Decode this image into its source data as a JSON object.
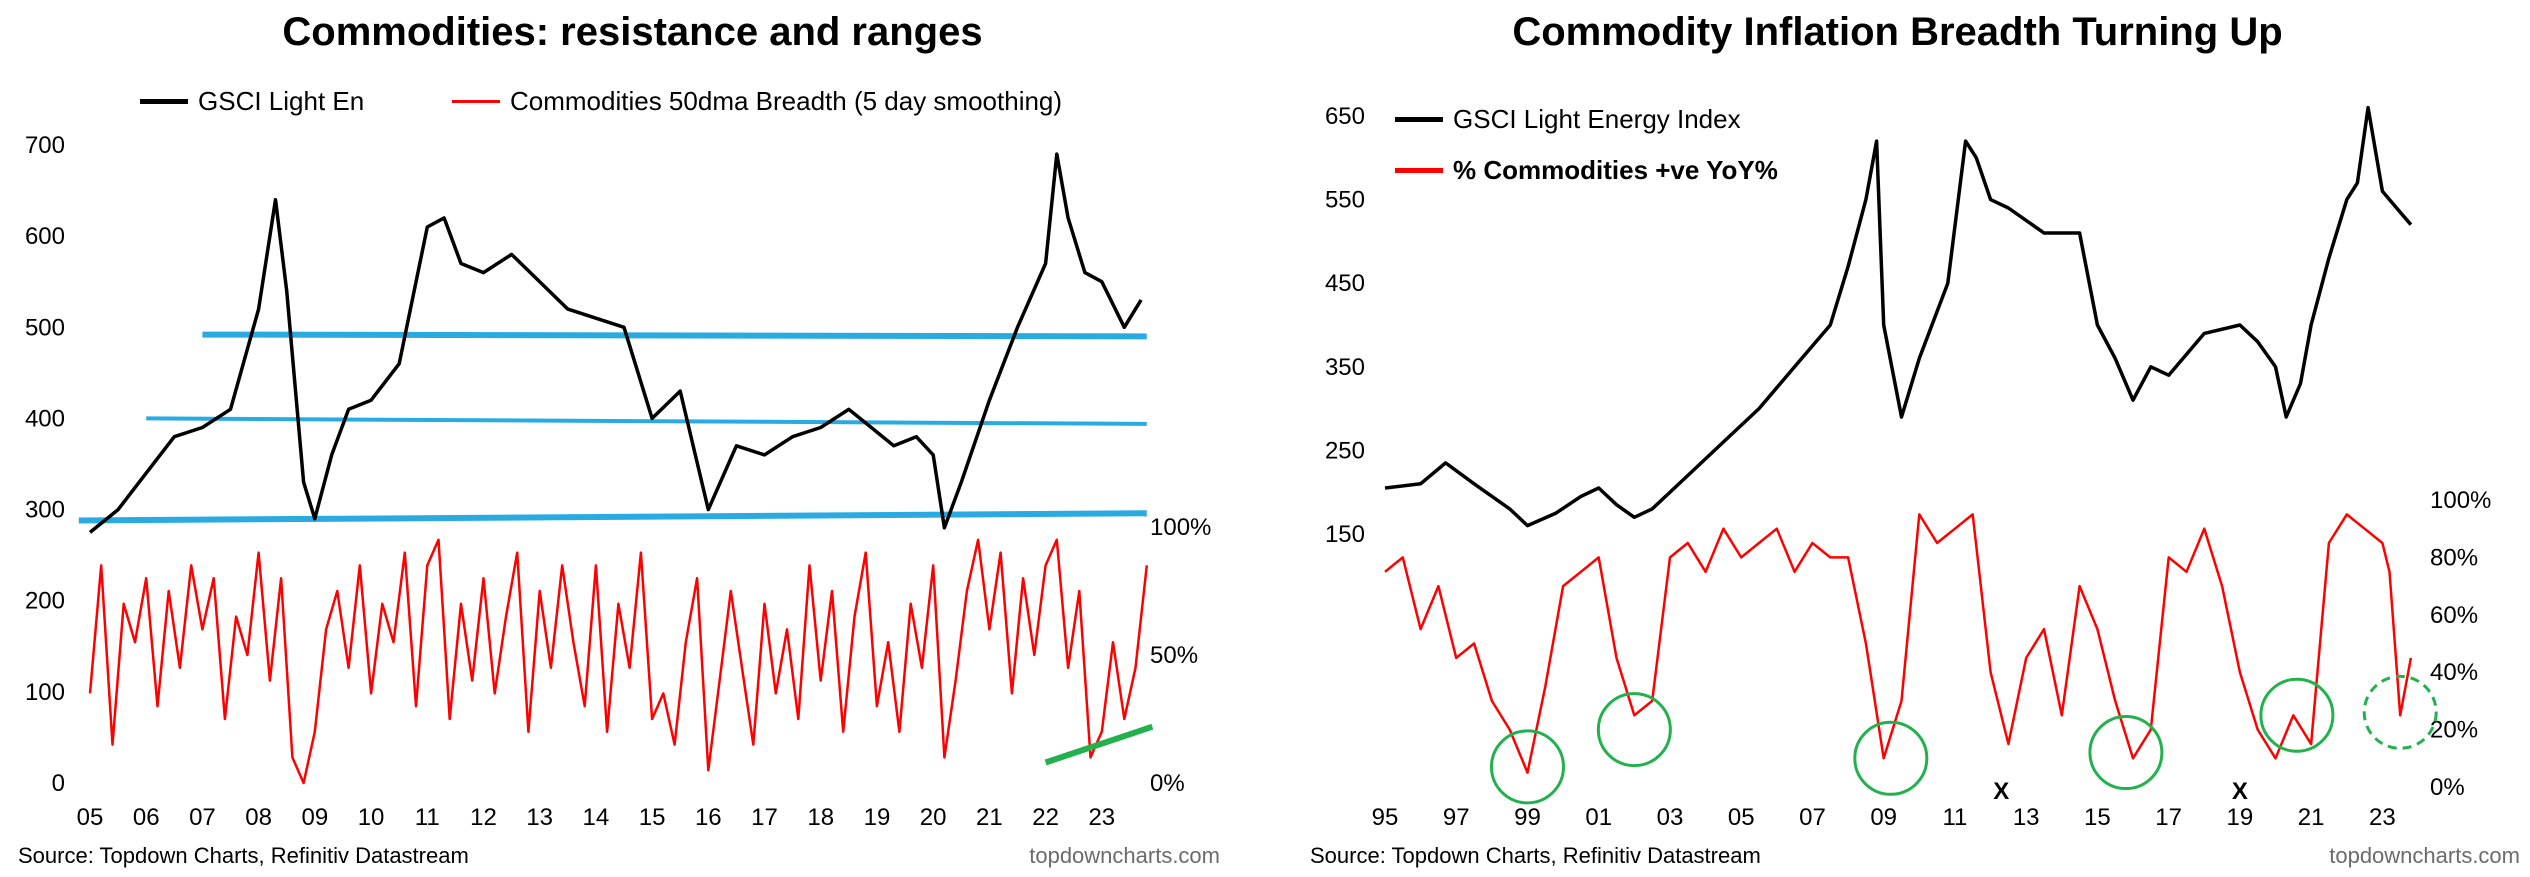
{
  "chart_data": [
    {
      "type": "line",
      "title": "Commodities: resistance and ranges",
      "legend": [
        {
          "name": "GSCI Light En",
          "color": "#000000"
        },
        {
          "name": "Commodities 50dma Breadth (5 day smoothing)",
          "color": "#ff0000"
        }
      ],
      "x_ticks": [
        "05",
        "06",
        "07",
        "08",
        "09",
        "10",
        "11",
        "12",
        "13",
        "14",
        "15",
        "16",
        "17",
        "18",
        "19",
        "20",
        "21",
        "22",
        "23"
      ],
      "x_range": [
        2005,
        2024
      ],
      "y_left_ticks": [
        "0",
        "100",
        "200",
        "300",
        "400",
        "500",
        "600",
        "700"
      ],
      "y_left_range": [
        0,
        700
      ],
      "y_right_ticks": [
        "0%",
        "50%",
        "100%"
      ],
      "y_right_range": [
        0,
        100
      ],
      "series": [
        {
          "name": "GSCI Light En",
          "axis": "left",
          "color": "#000000",
          "x": [
            2005.0,
            2005.5,
            2006.0,
            2006.5,
            2007.0,
            2007.5,
            2008.0,
            2008.3,
            2008.5,
            2008.8,
            2009.0,
            2009.3,
            2009.6,
            2010.0,
            2010.5,
            2011.0,
            2011.3,
            2011.6,
            2012.0,
            2012.5,
            2013.0,
            2013.5,
            2014.0,
            2014.5,
            2015.0,
            2015.5,
            2016.0,
            2016.5,
            2017.0,
            2017.5,
            2018.0,
            2018.5,
            2018.9,
            2019.3,
            2019.7,
            2020.0,
            2020.2,
            2020.5,
            2021.0,
            2021.5,
            2022.0,
            2022.2,
            2022.4,
            2022.7,
            2023.0,
            2023.4,
            2023.7
          ],
          "values": [
            275,
            300,
            340,
            380,
            390,
            410,
            520,
            640,
            540,
            330,
            290,
            360,
            410,
            420,
            460,
            610,
            620,
            570,
            560,
            580,
            550,
            520,
            510,
            500,
            400,
            430,
            300,
            370,
            360,
            380,
            390,
            410,
            390,
            370,
            380,
            360,
            280,
            330,
            420,
            500,
            570,
            690,
            620,
            560,
            550,
            500,
            530
          ]
        },
        {
          "name": "Commodities 50dma Breadth (5 day smoothing)",
          "axis": "right",
          "color": "#ff0000",
          "x": [
            2005.0,
            2005.2,
            2005.4,
            2005.6,
            2005.8,
            2006.0,
            2006.2,
            2006.4,
            2006.6,
            2006.8,
            2007.0,
            2007.2,
            2007.4,
            2007.6,
            2007.8,
            2008.0,
            2008.2,
            2008.4,
            2008.6,
            2008.8,
            2009.0,
            2009.2,
            2009.4,
            2009.6,
            2009.8,
            2010.0,
            2010.2,
            2010.4,
            2010.6,
            2010.8,
            2011.0,
            2011.2,
            2011.4,
            2011.6,
            2011.8,
            2012.0,
            2012.2,
            2012.4,
            2012.6,
            2012.8,
            2013.0,
            2013.2,
            2013.4,
            2013.6,
            2013.8,
            2014.0,
            2014.2,
            2014.4,
            2014.6,
            2014.8,
            2015.0,
            2015.2,
            2015.4,
            2015.6,
            2015.8,
            2016.0,
            2016.2,
            2016.4,
            2016.6,
            2016.8,
            2017.0,
            2017.2,
            2017.4,
            2017.6,
            2017.8,
            2018.0,
            2018.2,
            2018.4,
            2018.6,
            2018.8,
            2019.0,
            2019.2,
            2019.4,
            2019.6,
            2019.8,
            2020.0,
            2020.2,
            2020.4,
            2020.6,
            2020.8,
            2021.0,
            2021.2,
            2021.4,
            2021.6,
            2021.8,
            2022.0,
            2022.2,
            2022.4,
            2022.6,
            2022.8,
            2023.0,
            2023.2,
            2023.4,
            2023.6,
            2023.8
          ],
          "values": [
            35,
            85,
            15,
            70,
            55,
            80,
            30,
            75,
            45,
            85,
            60,
            80,
            25,
            65,
            50,
            90,
            40,
            80,
            10,
            0,
            20,
            60,
            75,
            45,
            85,
            35,
            70,
            55,
            90,
            30,
            85,
            95,
            25,
            70,
            40,
            80,
            35,
            65,
            90,
            20,
            75,
            45,
            85,
            55,
            30,
            85,
            20,
            70,
            45,
            90,
            25,
            35,
            15,
            55,
            80,
            5,
            40,
            75,
            45,
            15,
            70,
            35,
            60,
            25,
            85,
            40,
            75,
            20,
            65,
            90,
            30,
            55,
            20,
            70,
            45,
            85,
            10,
            40,
            75,
            95,
            60,
            90,
            35,
            80,
            50,
            85,
            95,
            45,
            75,
            10,
            20,
            55,
            25,
            45,
            85
          ]
        }
      ],
      "reference_lines": [
        {
          "from_x": 2007.0,
          "to_x": 2023.8,
          "from_y": 492,
          "to_y": 490,
          "color": "#29abe2"
        },
        {
          "from_x": 2006.0,
          "to_x": 2023.8,
          "from_y": 400,
          "to_y": 394,
          "color": "#29abe2"
        },
        {
          "from_x": 2004.8,
          "to_x": 2023.8,
          "from_y": 288,
          "to_y": 296,
          "color": "#29abe2"
        }
      ],
      "trend_line": {
        "from_x": 2022.0,
        "to_x": 2023.9,
        "from_y": 8,
        "to_y": 22,
        "axis": "right",
        "color": "#22b14c"
      }
    },
    {
      "type": "line",
      "title": "Commodity Inflation Breadth Turning Up",
      "legend": [
        {
          "name": "GSCI Light Energy Index",
          "color": "#000000",
          "bold": false
        },
        {
          "name": "% Commodities +ve YoY%",
          "color": "#ff0000",
          "bold": true
        }
      ],
      "x_ticks": [
        "95",
        "97",
        "99",
        "01",
        "03",
        "05",
        "07",
        "09",
        "11",
        "13",
        "15",
        "17",
        "19",
        "21",
        "23"
      ],
      "x_range": [
        1995,
        2024
      ],
      "y_left_ticks": [
        "150",
        "250",
        "350",
        "450",
        "550",
        "650"
      ],
      "y_left_range": [
        150,
        650
      ],
      "y_right_ticks": [
        "0%",
        "20%",
        "40%",
        "60%",
        "80%",
        "100%"
      ],
      "y_right_range": [
        0,
        100
      ],
      "series": [
        {
          "name": "GSCI Light Energy Index",
          "axis": "left",
          "color": "#000000",
          "x": [
            1995.0,
            1996.0,
            1996.7,
            1997.5,
            1998.5,
            1999.0,
            1999.8,
            2000.5,
            2001.0,
            2001.5,
            2002.0,
            2002.5,
            2003.5,
            2004.5,
            2005.5,
            2006.5,
            2007.5,
            2008.0,
            2008.5,
            2008.8,
            2009.0,
            2009.5,
            2010.0,
            2010.8,
            2011.3,
            2011.6,
            2012.0,
            2012.5,
            2013.5,
            2014.5,
            2015.0,
            2015.5,
            2016.0,
            2016.5,
            2017.0,
            2018.0,
            2019.0,
            2019.5,
            2020.0,
            2020.3,
            2020.7,
            2021.0,
            2021.5,
            2022.0,
            2022.3,
            2022.6,
            2023.0,
            2023.4,
            2023.8
          ],
          "values": [
            205,
            210,
            235,
            210,
            180,
            160,
            175,
            195,
            205,
            185,
            170,
            180,
            220,
            260,
            300,
            350,
            400,
            470,
            550,
            620,
            400,
            290,
            360,
            450,
            620,
            600,
            550,
            540,
            510,
            510,
            400,
            360,
            310,
            350,
            340,
            390,
            400,
            380,
            350,
            290,
            330,
            400,
            480,
            550,
            570,
            660,
            560,
            540,
            520
          ]
        },
        {
          "name": "% Commodities +ve YoY%",
          "axis": "right",
          "color": "#ff0000",
          "x": [
            1995.0,
            1995.5,
            1996.0,
            1996.5,
            1997.0,
            1997.5,
            1998.0,
            1998.5,
            1999.0,
            1999.5,
            2000.0,
            2000.5,
            2001.0,
            2001.5,
            2002.0,
            2002.5,
            2003.0,
            2003.5,
            2004.0,
            2004.5,
            2005.0,
            2005.5,
            2006.0,
            2006.5,
            2007.0,
            2007.5,
            2008.0,
            2008.5,
            2009.0,
            2009.5,
            2010.0,
            2010.5,
            2011.0,
            2011.5,
            2012.0,
            2012.5,
            2013.0,
            2013.5,
            2014.0,
            2014.5,
            2015.0,
            2015.5,
            2016.0,
            2016.5,
            2017.0,
            2017.5,
            2018.0,
            2018.5,
            2019.0,
            2019.5,
            2020.0,
            2020.5,
            2021.0,
            2021.5,
            2022.0,
            2022.5,
            2023.0,
            2023.2,
            2023.5,
            2023.8
          ],
          "values": [
            75,
            80,
            55,
            70,
            45,
            50,
            30,
            20,
            5,
            35,
            70,
            75,
            80,
            45,
            25,
            30,
            80,
            85,
            75,
            90,
            80,
            85,
            90,
            75,
            85,
            80,
            80,
            50,
            10,
            30,
            95,
            85,
            90,
            95,
            40,
            15,
            45,
            55,
            25,
            70,
            55,
            30,
            10,
            20,
            80,
            75,
            90,
            70,
            40,
            20,
            10,
            25,
            15,
            85,
            95,
            90,
            85,
            75,
            25,
            45
          ]
        }
      ],
      "markers": [
        {
          "type": "circle",
          "x": 1999.0,
          "y": 7,
          "style": "solid"
        },
        {
          "type": "circle",
          "x": 2002.0,
          "y": 20,
          "style": "solid"
        },
        {
          "type": "circle",
          "x": 2009.2,
          "y": 10,
          "style": "solid"
        },
        {
          "type": "circle",
          "x": 2015.8,
          "y": 12,
          "style": "solid"
        },
        {
          "type": "circle",
          "x": 2020.6,
          "y": 25,
          "style": "solid"
        },
        {
          "type": "circle",
          "x": 2023.5,
          "y": 26,
          "style": "dashed"
        },
        {
          "type": "cross",
          "x": 2012.3,
          "label": "X"
        },
        {
          "type": "cross",
          "x": 2019.0,
          "label": "X"
        }
      ]
    }
  ],
  "footer": {
    "source_left": "Source: Topdown Charts, Refinitiv Datastream",
    "watermark_left": "topdowncharts.com",
    "source_right": "Source: Topdown Charts, Refinitiv Datastream",
    "watermark_right": "topdowncharts.com"
  },
  "colors": {
    "gsci": "#000000",
    "breadth": "#ff0000",
    "resistance": "#29abe2",
    "circle": "#22b14c",
    "cross": "#c00000"
  }
}
